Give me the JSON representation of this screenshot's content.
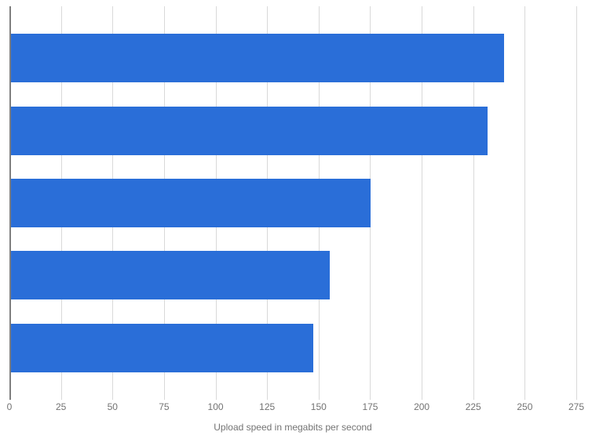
{
  "chart": {
    "type": "bar",
    "orientation": "horizontal",
    "xlabel": "Upload speed in megabits per second",
    "label_fontsize": 12,
    "label_color": "#737373",
    "xlim": [
      0,
      275
    ],
    "xtick_step": 25,
    "xticks": [
      0,
      25,
      50,
      75,
      100,
      125,
      150,
      175,
      200,
      225,
      250,
      275
    ],
    "values": [
      240,
      232,
      175,
      155,
      147
    ],
    "bar_color": "#2a6ed8",
    "background_color": "#ffffff",
    "grid_color": "#d9d9d9",
    "axis_color": "#7f7f7f",
    "tick_color": "#737373",
    "tick_fontsize": 12,
    "bar_height_ratio": 0.62
  }
}
